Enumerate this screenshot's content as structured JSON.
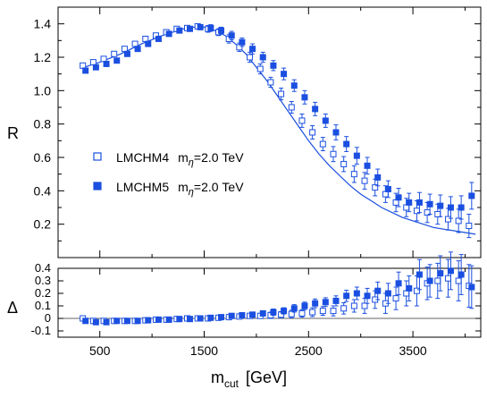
{
  "chart_data": [
    {
      "type": "scatter",
      "panel": "main",
      "ylabel": "R",
      "xlim": [
        100,
        4150
      ],
      "ylim": [
        0,
        1.5
      ],
      "yticks": [
        "0.2",
        "0.4",
        "0.6",
        "0.8",
        "1.0",
        "1.2",
        "1.4"
      ],
      "ytick_values": [
        0.2,
        0.4,
        0.6,
        0.8,
        1.0,
        1.2,
        1.4
      ],
      "legend_position": "middle-left",
      "legend": [
        {
          "series": "LMCHM4",
          "label": "LMCHM4",
          "mlabel": "m",
          "sub": "η",
          "mass": "=2.0 TeV"
        },
        {
          "series": "LMCHM5",
          "label": "LMCHM5",
          "mlabel": "m",
          "sub": "η",
          "mass": "=2.0 TeV"
        }
      ],
      "series": [
        {
          "name": "LMCHM4",
          "marker": "open-square",
          "color": "#1a4fe0",
          "x": [
            350,
            450,
            550,
            650,
            750,
            850,
            950,
            1050,
            1150,
            1250,
            1350,
            1450,
            1550,
            1650,
            1750,
            1850,
            1950,
            2050,
            2150,
            2250,
            2350,
            2450,
            2550,
            2650,
            2750,
            2850,
            2950,
            3050,
            3150,
            3250,
            3350,
            3450,
            3550,
            3650,
            3750,
            3850,
            3950,
            4050
          ],
          "y": [
            1.15,
            1.17,
            1.19,
            1.22,
            1.25,
            1.28,
            1.31,
            1.33,
            1.35,
            1.37,
            1.375,
            1.385,
            1.37,
            1.35,
            1.31,
            1.26,
            1.2,
            1.13,
            1.05,
            0.98,
            0.9,
            0.82,
            0.75,
            0.68,
            0.62,
            0.56,
            0.5,
            0.46,
            0.42,
            0.38,
            0.33,
            0.3,
            0.28,
            0.27,
            0.26,
            0.23,
            0.22,
            0.19
          ],
          "err": [
            0,
            0,
            0,
            0,
            0,
            0,
            0,
            0,
            0,
            0,
            0,
            0,
            0.02,
            0.02,
            0.025,
            0.025,
            0.03,
            0.03,
            0.03,
            0.035,
            0.035,
            0.04,
            0.04,
            0.04,
            0.045,
            0.045,
            0.05,
            0.05,
            0.05,
            0.05,
            0.055,
            0.055,
            0.06,
            0.06,
            0.06,
            0.065,
            0.07,
            0.07
          ]
        },
        {
          "name": "LMCHM5",
          "marker": "filled-square",
          "color": "#1a4fe0",
          "x": [
            350,
            450,
            550,
            650,
            750,
            850,
            950,
            1050,
            1150,
            1250,
            1350,
            1450,
            1550,
            1650,
            1750,
            1850,
            1950,
            2050,
            2150,
            2250,
            2350,
            2450,
            2550,
            2650,
            2750,
            2850,
            2950,
            3050,
            3150,
            3250,
            3350,
            3450,
            3550,
            3650,
            3750,
            3850,
            3950,
            4050
          ],
          "y": [
            1.12,
            1.14,
            1.16,
            1.18,
            1.22,
            1.25,
            1.28,
            1.31,
            1.34,
            1.36,
            1.37,
            1.38,
            1.375,
            1.36,
            1.33,
            1.29,
            1.25,
            1.2,
            1.15,
            1.1,
            1.03,
            0.96,
            0.89,
            0.82,
            0.75,
            0.68,
            0.61,
            0.55,
            0.48,
            0.41,
            0.36,
            0.33,
            0.33,
            0.32,
            0.31,
            0.3,
            0.3,
            0.37
          ],
          "err": [
            0,
            0,
            0,
            0,
            0,
            0,
            0,
            0,
            0,
            0,
            0,
            0,
            0.02,
            0.02,
            0.025,
            0.025,
            0.03,
            0.03,
            0.03,
            0.035,
            0.035,
            0.04,
            0.04,
            0.04,
            0.045,
            0.045,
            0.05,
            0.05,
            0.05,
            0.05,
            0.055,
            0.055,
            0.06,
            0.06,
            0.065,
            0.065,
            0.07,
            0.08
          ]
        },
        {
          "name": "curve",
          "marker": "line",
          "color": "#1a4fe0",
          "x": [
            350,
            500,
            700,
            900,
            1100,
            1300,
            1400,
            1500,
            1600,
            1700,
            1800,
            1900,
            2000,
            2100,
            2200,
            2300,
            2400,
            2500,
            2600,
            2700,
            2800,
            2900,
            3000,
            3100,
            3200,
            3300,
            3400,
            3500,
            3600,
            3700,
            3800,
            3900,
            4000,
            4100
          ],
          "y": [
            1.14,
            1.17,
            1.22,
            1.28,
            1.33,
            1.37,
            1.38,
            1.38,
            1.36,
            1.33,
            1.28,
            1.22,
            1.14,
            1.06,
            0.97,
            0.88,
            0.79,
            0.7,
            0.62,
            0.55,
            0.49,
            0.43,
            0.38,
            0.34,
            0.3,
            0.27,
            0.24,
            0.22,
            0.2,
            0.18,
            0.17,
            0.16,
            0.15,
            0.14
          ]
        }
      ]
    },
    {
      "type": "scatter",
      "panel": "ratio",
      "ylabel": "Δ",
      "xlabel": "m",
      "xlabel_sub": "cut",
      "xlabel_unit": "[GeV]",
      "xlim": [
        100,
        4150
      ],
      "ylim": [
        -0.15,
        0.4
      ],
      "xticks": [
        "500",
        "1500",
        "2500",
        "3500"
      ],
      "xtick_values": [
        500,
        1500,
        2500,
        3500
      ],
      "yticks": [
        "0.4",
        "0.3",
        "0.2",
        "0.1",
        "0",
        "-0.1"
      ],
      "ytick_values": [
        0.4,
        0.3,
        0.2,
        0.1,
        0,
        -0.1
      ],
      "series": [
        {
          "name": "LMCHM4",
          "marker": "open-square",
          "color": "#1a4fe0",
          "x": [
            350,
            450,
            550,
            650,
            750,
            850,
            950,
            1050,
            1150,
            1250,
            1350,
            1450,
            1550,
            1650,
            1750,
            1850,
            1950,
            2050,
            2150,
            2250,
            2350,
            2450,
            2550,
            2650,
            2750,
            2850,
            2950,
            3050,
            3150,
            3250,
            3350,
            3450,
            3550,
            3650,
            3750,
            3850,
            3950,
            4050
          ],
          "y": [
            0.0,
            -0.02,
            -0.02,
            -0.02,
            -0.02,
            -0.02,
            -0.015,
            -0.01,
            -0.01,
            -0.005,
            0.0,
            0.0,
            0.0,
            0.005,
            0.01,
            0.015,
            0.02,
            0.02,
            0.025,
            0.03,
            0.035,
            0.04,
            0.05,
            0.06,
            0.06,
            0.08,
            0.1,
            0.1,
            0.15,
            0.12,
            0.16,
            0.2,
            0.22,
            0.28,
            0.3,
            0.32,
            0.3,
            0.26
          ],
          "err": [
            0,
            0,
            0,
            0,
            0,
            0,
            0,
            0,
            0,
            0,
            0,
            0,
            0.01,
            0.01,
            0.015,
            0.015,
            0.02,
            0.02,
            0.025,
            0.025,
            0.03,
            0.03,
            0.035,
            0.035,
            0.04,
            0.045,
            0.05,
            0.06,
            0.07,
            0.08,
            0.09,
            0.1,
            0.12,
            0.13,
            0.14,
            0.15,
            0.16,
            0.17
          ]
        },
        {
          "name": "LMCHM5",
          "marker": "filled-square",
          "color": "#1a4fe0",
          "x": [
            350,
            450,
            550,
            650,
            750,
            850,
            950,
            1050,
            1150,
            1250,
            1350,
            1450,
            1550,
            1650,
            1750,
            1850,
            1950,
            2050,
            2150,
            2250,
            2350,
            2450,
            2550,
            2650,
            2750,
            2850,
            2950,
            3050,
            3150,
            3250,
            3350,
            3450,
            3550,
            3650,
            3750,
            3850,
            3950,
            4050
          ],
          "y": [
            -0.02,
            -0.03,
            -0.03,
            -0.02,
            -0.02,
            -0.02,
            -0.015,
            -0.01,
            -0.01,
            -0.005,
            -0.005,
            0.0,
            0.005,
            0.01,
            0.02,
            0.025,
            0.03,
            0.04,
            0.05,
            0.06,
            0.08,
            0.1,
            0.12,
            0.13,
            0.14,
            0.18,
            0.2,
            0.18,
            0.22,
            0.2,
            0.28,
            0.24,
            0.35,
            0.3,
            0.36,
            0.38,
            0.35,
            0.25
          ],
          "err": [
            0,
            0,
            0,
            0,
            0,
            0,
            0,
            0,
            0,
            0,
            0,
            0,
            0.01,
            0.01,
            0.015,
            0.015,
            0.02,
            0.02,
            0.025,
            0.025,
            0.03,
            0.03,
            0.035,
            0.035,
            0.04,
            0.045,
            0.05,
            0.06,
            0.07,
            0.08,
            0.09,
            0.1,
            0.12,
            0.13,
            0.14,
            0.15,
            0.16,
            0.17
          ]
        }
      ]
    }
  ]
}
